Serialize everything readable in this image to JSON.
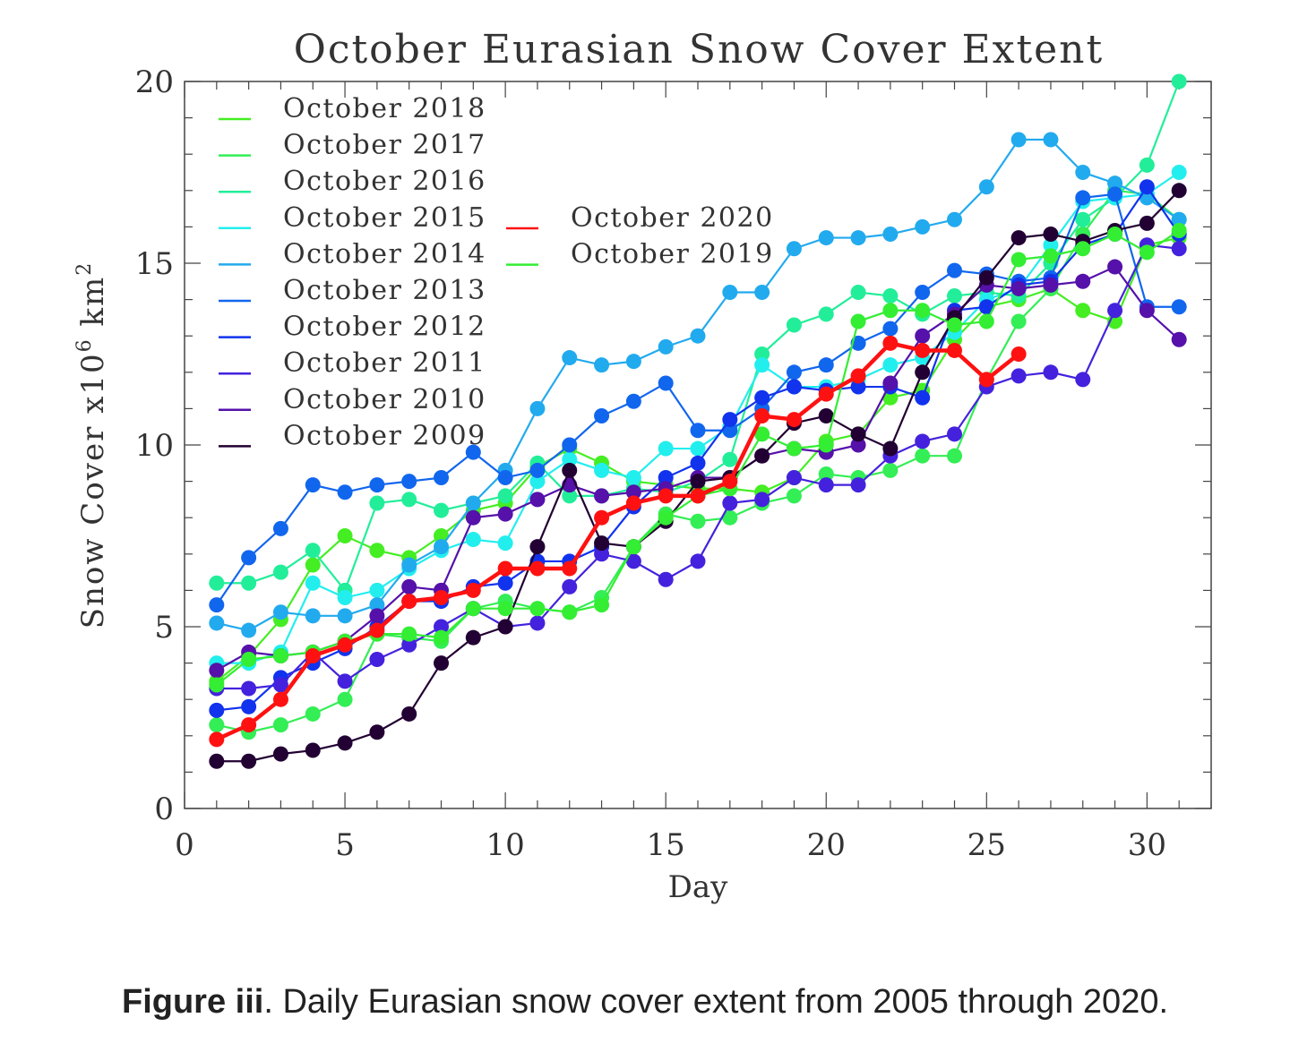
{
  "chart_data": {
    "type": "line",
    "title": "October Eurasian Snow Cover Extent",
    "xlabel": "Day",
    "ylabel": "Snow Cover x10",
    "ylabel_sup": "6",
    "ylabel_unit": "km",
    "ylabel_unit_sup": "2",
    "xlim": [
      0,
      32
    ],
    "ylim": [
      0,
      20
    ],
    "xticks": [
      0,
      5,
      10,
      15,
      20,
      25,
      30
    ],
    "yticks": [
      0,
      5,
      10,
      15,
      20
    ],
    "grid": false,
    "legend_position": "top-left",
    "series": [
      {
        "name": "October 2018",
        "color": "#44ee22",
        "values": [
          3.5,
          4.2,
          5.2,
          6.7,
          7.5,
          7.1,
          6.9,
          7.5,
          8.2,
          8.4,
          9.4,
          9.9,
          9.5,
          9.0,
          8.9,
          8.8,
          8.8,
          8.7,
          9.1,
          10.1,
          10.3,
          11.3,
          11.5,
          12.9,
          13.8,
          14.0,
          14.3,
          13.7,
          13.4,
          15.5,
          15.7
        ]
      },
      {
        "name": "October 2017",
        "color": "#33ee55",
        "values": [
          2.3,
          2.1,
          2.3,
          2.6,
          3.0,
          4.8,
          4.7,
          4.6,
          5.5,
          5.7,
          5.5,
          5.4,
          5.8,
          7.2,
          8.1,
          7.9,
          8.0,
          8.4,
          8.6,
          9.2,
          9.1,
          9.3,
          9.7,
          9.7,
          11.8,
          13.4,
          14.3,
          15.8,
          17.0,
          16.9,
          16.2
        ]
      },
      {
        "name": "October 2016",
        "color": "#22ee99",
        "values": [
          6.2,
          6.2,
          6.5,
          7.1,
          6.0,
          8.4,
          8.5,
          8.2,
          8.4,
          8.6,
          9.5,
          8.6,
          8.6,
          8.8,
          8.7,
          9.0,
          9.6,
          12.5,
          13.3,
          13.6,
          14.2,
          14.1,
          13.6,
          14.1,
          14.2,
          14.1,
          15.0,
          16.2,
          16.8,
          17.7,
          20.0
        ]
      },
      {
        "name": "October 2015",
        "color": "#22eeee",
        "values": [
          4.0,
          4.0,
          4.3,
          6.2,
          5.8,
          6.0,
          6.6,
          7.1,
          7.4,
          7.3,
          9.0,
          9.6,
          9.3,
          9.1,
          9.9,
          9.9,
          10.5,
          12.2,
          11.6,
          11.6,
          11.8,
          12.2,
          12.4,
          13.1,
          14.0,
          14.3,
          15.5,
          16.7,
          16.8,
          16.9,
          17.5
        ]
      },
      {
        "name": "October 2014",
        "color": "#22aaee",
        "values": [
          5.1,
          4.9,
          5.4,
          5.3,
          5.3,
          5.6,
          6.7,
          7.2,
          8.4,
          9.3,
          11.0,
          12.4,
          12.2,
          12.3,
          12.7,
          13.0,
          14.2,
          14.2,
          15.4,
          15.7,
          15.7,
          15.8,
          16.0,
          16.2,
          17.1,
          18.4,
          18.4,
          17.5,
          17.2,
          16.8,
          16.2
        ]
      },
      {
        "name": "October 2013",
        "color": "#1166ee",
        "values": [
          5.6,
          6.9,
          7.7,
          8.9,
          8.7,
          8.9,
          9.0,
          9.1,
          9.8,
          9.1,
          9.3,
          10.0,
          10.8,
          11.2,
          11.7,
          10.4,
          10.4,
          11.0,
          12.0,
          12.2,
          12.8,
          13.2,
          14.2,
          14.8,
          14.7,
          14.5,
          14.6,
          16.8,
          16.9,
          13.8,
          13.8
        ]
      },
      {
        "name": "October 2012",
        "color": "#1133ee",
        "values": [
          2.7,
          2.8,
          3.6,
          4.0,
          4.4,
          5.0,
          5.7,
          5.7,
          6.1,
          6.2,
          6.8,
          6.8,
          7.2,
          8.3,
          9.1,
          9.5,
          10.7,
          11.3,
          11.6,
          11.5,
          11.6,
          11.6,
          11.3,
          13.7,
          13.8,
          14.4,
          14.5,
          15.5,
          15.8,
          17.1,
          15.8
        ]
      },
      {
        "name": "October 2011",
        "color": "#4422dd",
        "values": [
          3.3,
          3.3,
          3.4,
          4.3,
          3.5,
          4.1,
          4.5,
          5.0,
          5.5,
          5.0,
          5.1,
          6.1,
          7.0,
          6.8,
          6.3,
          6.8,
          8.4,
          8.5,
          9.1,
          8.9,
          8.9,
          9.7,
          10.1,
          10.3,
          11.6,
          11.9,
          12.0,
          11.8,
          13.7,
          15.5,
          15.4
        ]
      },
      {
        "name": "October 2010",
        "color": "#5511aa",
        "values": [
          3.8,
          4.3,
          4.2,
          4.3,
          4.6,
          5.3,
          6.1,
          6.0,
          8.0,
          8.1,
          8.5,
          8.9,
          8.6,
          8.7,
          8.8,
          9.1,
          9.1,
          9.7,
          9.9,
          9.8,
          10.0,
          11.7,
          13.0,
          13.6,
          14.4,
          14.3,
          14.4,
          14.5,
          14.9,
          13.7,
          12.9
        ]
      },
      {
        "name": "October 2009",
        "color": "#220033",
        "values": [
          1.3,
          1.3,
          1.5,
          1.6,
          1.8,
          2.1,
          2.6,
          4.0,
          4.7,
          5.0,
          7.2,
          9.3,
          7.3,
          7.2,
          7.9,
          9.0,
          9.1,
          9.7,
          10.6,
          10.8,
          10.3,
          9.9,
          12.0,
          13.5,
          14.6,
          15.7,
          15.8,
          15.6,
          15.9,
          16.1,
          17.0
        ]
      },
      {
        "name": "October 2020",
        "color": "#ff1111",
        "values": [
          1.9,
          2.3,
          3.0,
          4.2,
          4.5,
          4.9,
          5.7,
          5.8,
          6.0,
          6.6,
          6.6,
          6.6,
          8.0,
          8.4,
          8.6,
          8.6,
          9.0,
          10.8,
          10.7,
          11.4,
          11.9,
          12.8,
          12.6,
          12.6,
          11.8,
          12.5
        ]
      },
      {
        "name": "October 2019",
        "color": "#33ee33",
        "values": [
          3.4,
          4.1,
          4.2,
          4.3,
          4.6,
          4.8,
          4.8,
          4.7,
          5.5,
          5.5,
          5.5,
          5.4,
          5.6,
          7.2,
          8.0,
          8.6,
          8.8,
          10.3,
          9.9,
          10.0,
          13.4,
          13.7,
          13.7,
          13.3,
          13.4,
          15.1,
          15.2,
          15.4,
          15.8,
          15.3,
          15.9
        ]
      }
    ]
  },
  "caption": {
    "bold": "Figure iii",
    "text": ". Daily Eurasian snow cover extent from 2005 through 2020."
  }
}
